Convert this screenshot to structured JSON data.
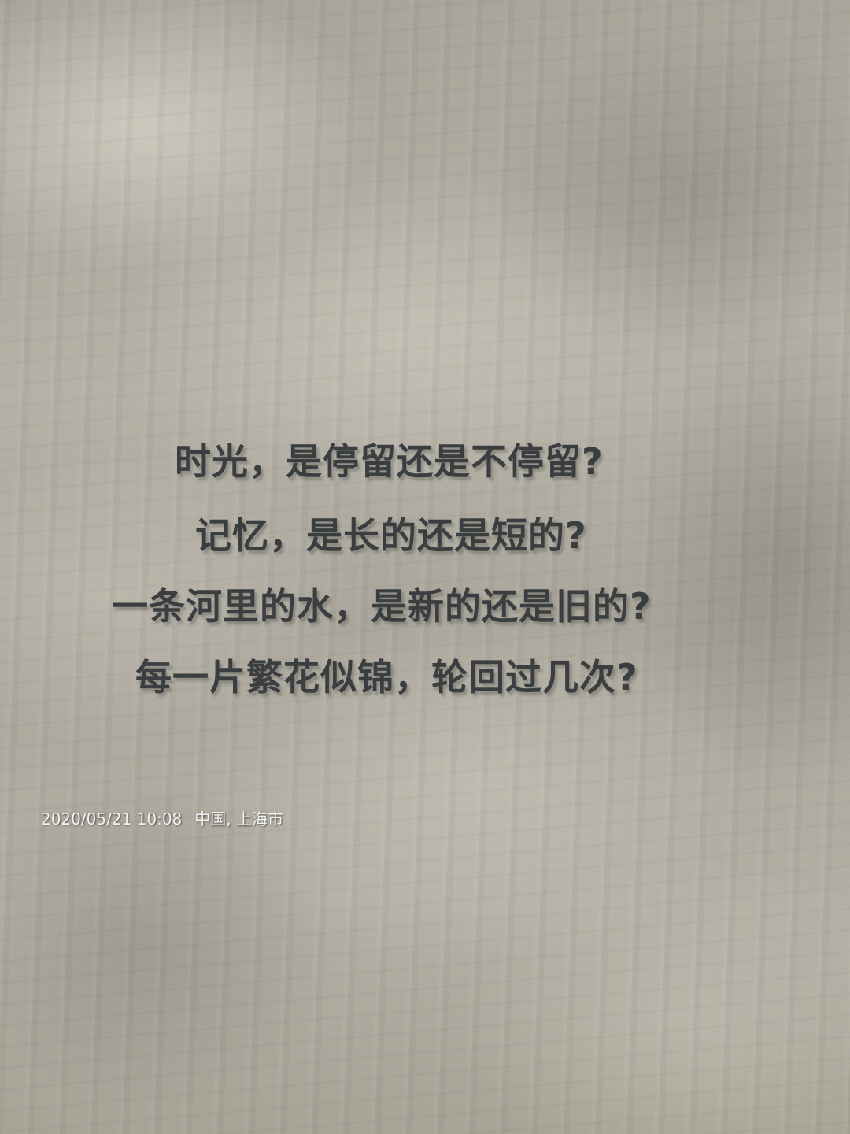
{
  "poem": {
    "lines": [
      "时光，是停留还是不停留?",
      "记忆，是长的还是短的?",
      "一条河里的水，是新的还是旧的?",
      "每一片繁花似锦，轮回过几次?"
    ]
  },
  "watermark": {
    "datetime": "2020/05/21 10:08",
    "location": "中国, 上海市"
  }
}
